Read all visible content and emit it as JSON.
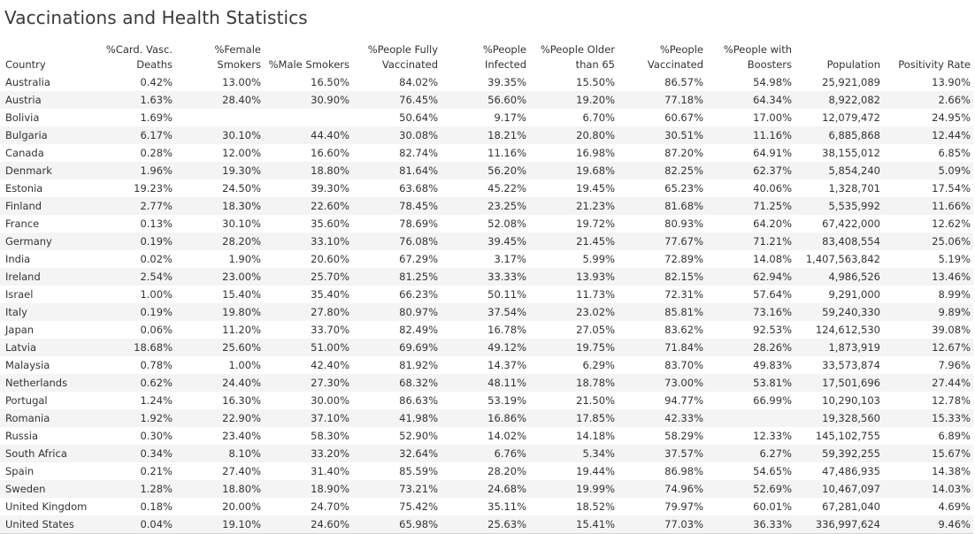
{
  "page": {
    "title": "Vaccinations and Health Statistics"
  },
  "chart_data": {
    "type": "table",
    "title": "Vaccinations and Health Statistics",
    "columns": [
      {
        "key": "country",
        "label_lines": [
          "",
          "Country"
        ]
      },
      {
        "key": "card_vasc_deaths",
        "label_lines": [
          "%Card. Vasc.",
          "Deaths"
        ]
      },
      {
        "key": "female_smokers",
        "label_lines": [
          "%Female",
          "Smokers"
        ]
      },
      {
        "key": "male_smokers",
        "label_lines": [
          "",
          "%Male Smokers"
        ]
      },
      {
        "key": "fully_vaccinated",
        "label_lines": [
          "%People Fully",
          "Vaccinated"
        ]
      },
      {
        "key": "people_infected",
        "label_lines": [
          "%People",
          "Infected"
        ]
      },
      {
        "key": "older_than_65",
        "label_lines": [
          "%People Older",
          "than 65"
        ]
      },
      {
        "key": "people_vaccinated",
        "label_lines": [
          "%People",
          "Vaccinated"
        ]
      },
      {
        "key": "with_boosters",
        "label_lines": [
          "%People with",
          "Boosters"
        ]
      },
      {
        "key": "population",
        "label_lines": [
          "",
          "Population"
        ]
      },
      {
        "key": "positivity_rate",
        "label_lines": [
          "",
          "Positivity Rate"
        ]
      }
    ],
    "rows": [
      [
        "Australia",
        "0.42%",
        "13.00%",
        "16.50%",
        "84.02%",
        "39.35%",
        "15.50%",
        "86.57%",
        "54.98%",
        "25,921,089",
        "13.90%"
      ],
      [
        "Austria",
        "1.63%",
        "28.40%",
        "30.90%",
        "76.45%",
        "56.60%",
        "19.20%",
        "77.18%",
        "64.34%",
        "8,922,082",
        "2.66%"
      ],
      [
        "Bolivia",
        "1.69%",
        "",
        "",
        "50.64%",
        "9.17%",
        "6.70%",
        "60.67%",
        "17.00%",
        "12,079,472",
        "24.95%"
      ],
      [
        "Bulgaria",
        "6.17%",
        "30.10%",
        "44.40%",
        "30.08%",
        "18.21%",
        "20.80%",
        "30.51%",
        "11.16%",
        "6,885,868",
        "12.44%"
      ],
      [
        "Canada",
        "0.28%",
        "12.00%",
        "16.60%",
        "82.74%",
        "11.16%",
        "16.98%",
        "87.20%",
        "64.91%",
        "38,155,012",
        "6.85%"
      ],
      [
        "Denmark",
        "1.96%",
        "19.30%",
        "18.80%",
        "81.64%",
        "56.20%",
        "19.68%",
        "82.25%",
        "62.37%",
        "5,854,240",
        "5.09%"
      ],
      [
        "Estonia",
        "19.23%",
        "24.50%",
        "39.30%",
        "63.68%",
        "45.22%",
        "19.45%",
        "65.23%",
        "40.06%",
        "1,328,701",
        "17.54%"
      ],
      [
        "Finland",
        "2.77%",
        "18.30%",
        "22.60%",
        "78.45%",
        "23.25%",
        "21.23%",
        "81.68%",
        "71.25%",
        "5,535,992",
        "11.66%"
      ],
      [
        "France",
        "0.13%",
        "30.10%",
        "35.60%",
        "78.69%",
        "52.08%",
        "19.72%",
        "80.93%",
        "64.20%",
        "67,422,000",
        "12.62%"
      ],
      [
        "Germany",
        "0.19%",
        "28.20%",
        "33.10%",
        "76.08%",
        "39.45%",
        "21.45%",
        "77.67%",
        "71.21%",
        "83,408,554",
        "25.06%"
      ],
      [
        "India",
        "0.02%",
        "1.90%",
        "20.60%",
        "67.29%",
        "3.17%",
        "5.99%",
        "72.89%",
        "14.08%",
        "1,407,563,842",
        "5.19%"
      ],
      [
        "Ireland",
        "2.54%",
        "23.00%",
        "25.70%",
        "81.25%",
        "33.33%",
        "13.93%",
        "82.15%",
        "62.94%",
        "4,986,526",
        "13.46%"
      ],
      [
        "Israel",
        "1.00%",
        "15.40%",
        "35.40%",
        "66.23%",
        "50.11%",
        "11.73%",
        "72.31%",
        "57.64%",
        "9,291,000",
        "8.99%"
      ],
      [
        "Italy",
        "0.19%",
        "19.80%",
        "27.80%",
        "80.97%",
        "37.54%",
        "23.02%",
        "85.81%",
        "73.16%",
        "59,240,330",
        "9.89%"
      ],
      [
        "Japan",
        "0.06%",
        "11.20%",
        "33.70%",
        "82.49%",
        "16.78%",
        "27.05%",
        "83.62%",
        "92.53%",
        "124,612,530",
        "39.08%"
      ],
      [
        "Latvia",
        "18.68%",
        "25.60%",
        "51.00%",
        "69.69%",
        "49.12%",
        "19.75%",
        "71.84%",
        "28.26%",
        "1,873,919",
        "12.67%"
      ],
      [
        "Malaysia",
        "0.78%",
        "1.00%",
        "42.40%",
        "81.92%",
        "14.37%",
        "6.29%",
        "83.70%",
        "49.83%",
        "33,573,874",
        "7.96%"
      ],
      [
        "Netherlands",
        "0.62%",
        "24.40%",
        "27.30%",
        "68.32%",
        "48.11%",
        "18.78%",
        "73.00%",
        "53.81%",
        "17,501,696",
        "27.44%"
      ],
      [
        "Portugal",
        "1.24%",
        "16.30%",
        "30.00%",
        "86.63%",
        "53.19%",
        "21.50%",
        "94.77%",
        "66.99%",
        "10,290,103",
        "12.78%"
      ],
      [
        "Romania",
        "1.92%",
        "22.90%",
        "37.10%",
        "41.98%",
        "16.86%",
        "17.85%",
        "42.33%",
        "",
        "19,328,560",
        "15.33%"
      ],
      [
        "Russia",
        "0.30%",
        "23.40%",
        "58.30%",
        "52.90%",
        "14.02%",
        "14.18%",
        "58.29%",
        "12.33%",
        "145,102,755",
        "6.89%"
      ],
      [
        "South Africa",
        "0.34%",
        "8.10%",
        "33.20%",
        "32.64%",
        "6.76%",
        "5.34%",
        "37.57%",
        "6.27%",
        "59,392,255",
        "15.67%"
      ],
      [
        "Spain",
        "0.21%",
        "27.40%",
        "31.40%",
        "85.59%",
        "28.20%",
        "19.44%",
        "86.98%",
        "54.65%",
        "47,486,935",
        "14.38%"
      ],
      [
        "Sweden",
        "1.28%",
        "18.80%",
        "18.90%",
        "73.21%",
        "24.68%",
        "19.99%",
        "74.96%",
        "52.69%",
        "10,467,097",
        "14.03%"
      ],
      [
        "United Kingdom",
        "0.18%",
        "20.00%",
        "24.70%",
        "75.42%",
        "35.11%",
        "18.52%",
        "79.97%",
        "60.01%",
        "67,281,040",
        "4.69%"
      ],
      [
        "United States",
        "0.04%",
        "19.10%",
        "24.60%",
        "65.98%",
        "25.63%",
        "15.41%",
        "77.03%",
        "36.33%",
        "336,997,624",
        "9.46%"
      ]
    ]
  }
}
